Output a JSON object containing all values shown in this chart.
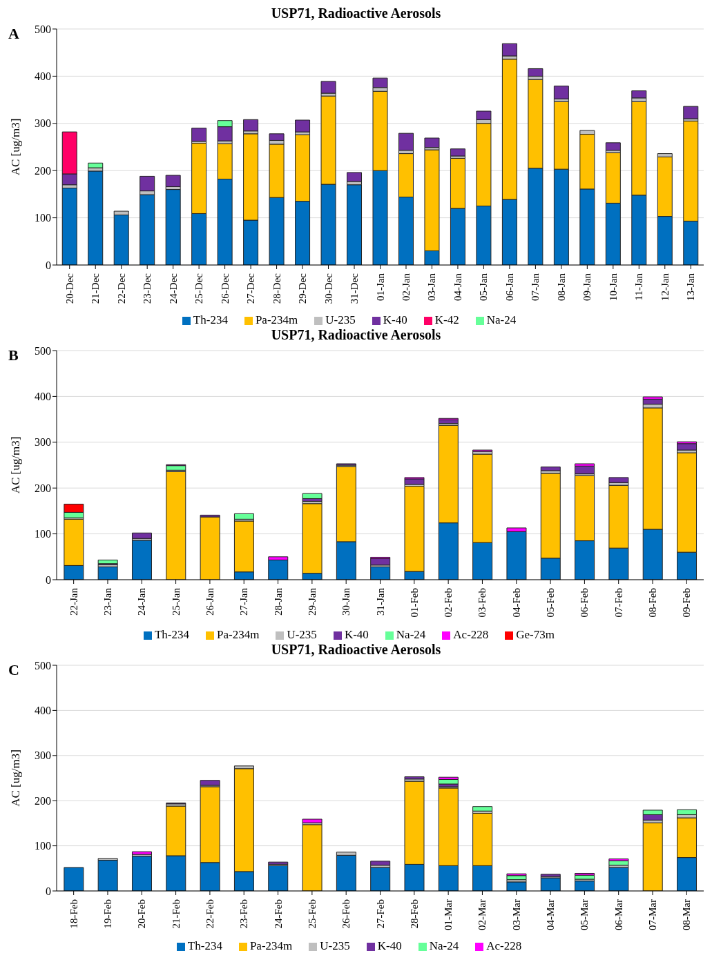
{
  "chart_data": [
    {
      "type": "bar",
      "title": "USP71, Radioactive  Aerosols",
      "annotations": [
        "A"
      ],
      "ylabel": "AC [ug/m3]",
      "stacked": true,
      "grid": "y",
      "legend": "bottom",
      "ylim": [
        0,
        500
      ],
      "yticks": [
        0,
        100,
        200,
        300,
        400,
        500
      ],
      "categories": [
        "20-Dec",
        "21-Dec",
        "22-Dec",
        "23-Dec",
        "24-Dec",
        "25-Dec",
        "26-Dec",
        "27-Dec",
        "28-Dec",
        "29-Dec",
        "30-Dec",
        "31-Dec",
        "01-Jan",
        "02-Jan",
        "03-Jan",
        "04-Jan",
        "05-Jan",
        "06-Jan",
        "07-Jan",
        "08-Jan",
        "09-Jan",
        "10-Jan",
        "11-Jan",
        "12-Jan",
        "13-Jan"
      ],
      "series": [
        {
          "name": "Th-234",
          "color": "#0070c0",
          "values": [
            163,
            199,
            106,
            149,
            160,
            109,
            182,
            95,
            143,
            135,
            171,
            170,
            200,
            144,
            30,
            120,
            125,
            139,
            205,
            203,
            161,
            131,
            148,
            103,
            93
          ]
        },
        {
          "name": "Pa-234m",
          "color": "#ffc000",
          "values": [
            0,
            0,
            0,
            0,
            0,
            149,
            75,
            183,
            113,
            141,
            187,
            0,
            168,
            92,
            214,
            106,
            175,
            297,
            188,
            143,
            116,
            107,
            198,
            126,
            212
          ]
        },
        {
          "name": "U-235",
          "color": "#bfbfbf",
          "values": [
            7,
            7,
            8,
            8,
            6,
            4,
            6,
            6,
            8,
            6,
            6,
            7,
            8,
            7,
            5,
            5,
            8,
            7,
            7,
            6,
            8,
            5,
            8,
            7,
            5
          ]
        },
        {
          "name": "K-40",
          "color": "#7030a0",
          "values": [
            23,
            0,
            0,
            31,
            24,
            28,
            30,
            24,
            14,
            25,
            25,
            19,
            20,
            36,
            20,
            15,
            18,
            26,
            16,
            27,
            0,
            16,
            15,
            0,
            26
          ]
        },
        {
          "name": "K-42",
          "color": "#ff0066",
          "values": [
            89,
            0,
            0,
            0,
            0,
            0,
            0,
            0,
            0,
            0,
            0,
            0,
            0,
            0,
            0,
            0,
            0,
            0,
            0,
            0,
            0,
            0,
            0,
            0,
            0
          ]
        },
        {
          "name": "Na-24",
          "color": "#66ff99",
          "values": [
            0,
            10,
            0,
            0,
            0,
            0,
            13,
            0,
            0,
            0,
            0,
            0,
            0,
            0,
            0,
            0,
            0,
            0,
            0,
            0,
            0,
            0,
            0,
            0,
            0
          ]
        }
      ]
    },
    {
      "type": "bar",
      "title": "USP71, Radioactive  Aerosols",
      "annotations": [
        "B"
      ],
      "ylabel": "AC [ug/m3]",
      "stacked": true,
      "grid": "y",
      "legend": "bottom",
      "ylim": [
        0,
        500
      ],
      "yticks": [
        0,
        100,
        200,
        300,
        400,
        500
      ],
      "categories": [
        "22-Jan",
        "23-Jan",
        "24-Jan",
        "25-Jan",
        "26-Jan",
        "27-Jan",
        "28-Jan",
        "29-Jan",
        "30-Jan",
        "31-Jan",
        "01-Feb",
        "02-Feb",
        "03-Feb",
        "04-Feb",
        "05-Feb",
        "06-Feb",
        "07-Feb",
        "08-Feb",
        "09-Feb"
      ],
      "series": [
        {
          "name": "Th-234",
          "color": "#0070c0",
          "values": [
            31,
            28,
            86,
            0,
            0,
            17,
            43,
            14,
            83,
            28,
            18,
            124,
            81,
            105,
            47,
            85,
            69,
            110,
            60
          ]
        },
        {
          "name": "Pa-234m",
          "color": "#ffc000",
          "values": [
            101,
            0,
            0,
            236,
            137,
            111,
            0,
            152,
            164,
            0,
            186,
            213,
            193,
            0,
            185,
            142,
            137,
            265,
            217
          ]
        },
        {
          "name": "U-235",
          "color": "#bfbfbf",
          "values": [
            3,
            5,
            4,
            3,
            0,
            4,
            0,
            5,
            3,
            4,
            4,
            4,
            6,
            0,
            6,
            4,
            6,
            8,
            6
          ]
        },
        {
          "name": "K-40",
          "color": "#7030a0",
          "values": [
            0,
            2,
            12,
            0,
            4,
            0,
            0,
            6,
            3,
            14,
            12,
            8,
            0,
            0,
            8,
            17,
            11,
            11,
            14
          ]
        },
        {
          "name": "Na-24",
          "color": "#66ff99",
          "values": [
            12,
            8,
            0,
            10,
            0,
            12,
            0,
            11,
            0,
            0,
            0,
            0,
            0,
            0,
            0,
            0,
            0,
            0,
            0
          ]
        },
        {
          "name": "Ac-228",
          "color": "#ff00ff",
          "values": [
            0,
            0,
            0,
            2,
            0,
            0,
            7,
            0,
            0,
            3,
            3,
            3,
            3,
            8,
            0,
            5,
            0,
            5,
            4
          ]
        },
        {
          "name": "Ge-73m",
          "color": "#ff0000",
          "values": [
            18,
            0,
            0,
            0,
            0,
            0,
            0,
            0,
            0,
            0,
            0,
            0,
            0,
            0,
            0,
            0,
            0,
            0,
            0
          ]
        }
      ]
    },
    {
      "type": "bar",
      "title": "USP71, Radioactive  Aerosols",
      "annotations": [
        "C"
      ],
      "ylabel": "AC [ug/m3]",
      "stacked": true,
      "grid": "y",
      "legend": "bottom",
      "ylim": [
        0,
        500
      ],
      "yticks": [
        0,
        100,
        200,
        300,
        400,
        500
      ],
      "categories": [
        "18-Feb",
        "19-Feb",
        "20-Feb",
        "21-Feb",
        "22-Feb",
        "23-Feb",
        "24-Feb",
        "25-Feb",
        "26-Feb",
        "27-Feb",
        "28-Feb",
        "01-Mar",
        "02-Mar",
        "03-Mar",
        "04-Mar",
        "05-Mar",
        "06-Mar",
        "07-Mar",
        "08-Mar"
      ],
      "series": [
        {
          "name": "Th-234",
          "color": "#0070c0",
          "values": [
            52,
            68,
            77,
            78,
            63,
            43,
            56,
            0,
            79,
            52,
            59,
            56,
            56,
            20,
            29,
            22,
            52,
            0,
            74
          ]
        },
        {
          "name": "Pa-234m",
          "color": "#ffc000",
          "values": [
            0,
            0,
            0,
            110,
            168,
            228,
            0,
            147,
            0,
            0,
            184,
            172,
            116,
            0,
            0,
            0,
            0,
            151,
            88
          ]
        },
        {
          "name": "U-235",
          "color": "#bfbfbf",
          "values": [
            0,
            4,
            4,
            5,
            3,
            6,
            3,
            4,
            7,
            5,
            5,
            3,
            5,
            5,
            3,
            4,
            5,
            6,
            7
          ]
        },
        {
          "name": "K-40",
          "color": "#7030a0",
          "values": [
            0,
            0,
            0,
            2,
            11,
            0,
            5,
            0,
            0,
            9,
            5,
            6,
            0,
            0,
            5,
            0,
            0,
            12,
            null
          ]
        },
        {
          "name": "Na-24",
          "color": "#66ff99",
          "values": [
            0,
            0,
            0,
            0,
            0,
            0,
            0,
            0,
            0,
            0,
            0,
            10,
            10,
            9,
            0,
            9,
            10,
            10,
            11
          ]
        },
        {
          "name": "Ac-228",
          "color": "#ff00ff",
          "values": [
            0,
            0,
            6,
            0,
            0,
            0,
            0,
            8,
            0,
            0,
            0,
            5,
            0,
            4,
            0,
            4,
            4,
            0,
            0
          ]
        }
      ]
    }
  ]
}
